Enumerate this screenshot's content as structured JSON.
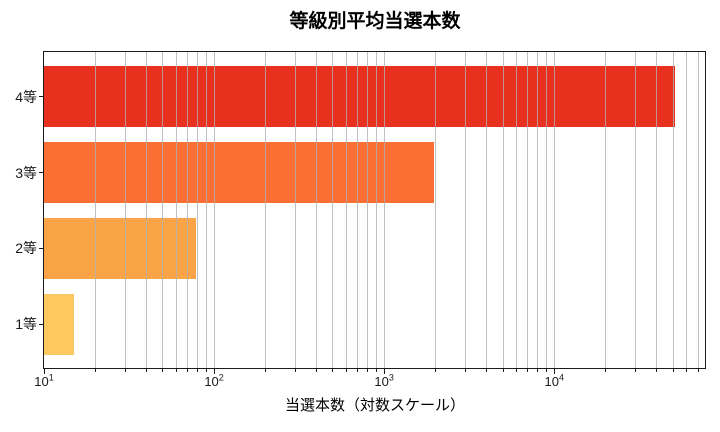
{
  "chart_data": {
    "type": "bar",
    "orientation": "horizontal",
    "title": "等級別平均当選本数",
    "xlabel": "当選本数（対数スケール）",
    "ylabel": "",
    "categories": [
      "4等",
      "3等",
      "2等",
      "1等"
    ],
    "values": [
      51000,
      1950,
      78,
      15
    ],
    "bar_colors": [
      "#e8301e",
      "#fa7034",
      "#fba447",
      "#fdc860"
    ],
    "x_scale": "log",
    "xlim": [
      10,
      78000
    ],
    "x_major_tick_exponents": [
      1,
      2,
      3,
      4
    ],
    "grid": "vertical log major+minor, drawn above bars",
    "grid_color": "#b0b0b0",
    "axis_color": "#1a1a1a",
    "legend_position": "none",
    "background_color": "#ffffff"
  }
}
